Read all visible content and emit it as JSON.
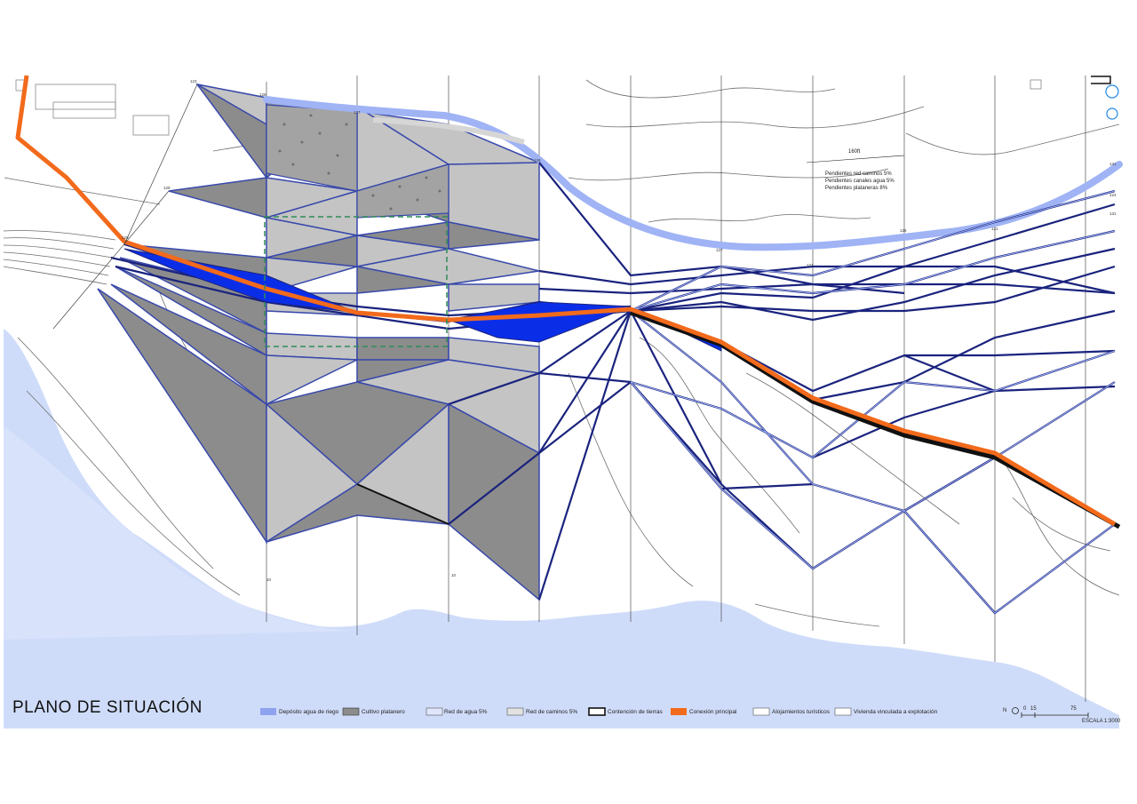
{
  "title": "PLANO DE SITUACIÓN",
  "legend": [
    {
      "label": "Depósito agua de riego",
      "color": "#8ea2f0",
      "icon": "water-deposit-swatch"
    },
    {
      "label": "Cultivo platanero",
      "color": "#8c8c8c",
      "icon": "banana-crop-swatch"
    },
    {
      "label": "Red de agua 5%",
      "color": "#b7c4f5",
      "icon": "water-network-swatch"
    },
    {
      "label": "Red de caminos 5%",
      "color": "#a8a8a8",
      "icon": "path-network-swatch"
    },
    {
      "label": "Contención de tierras",
      "color": "#111111",
      "icon": "earth-retaining-swatch"
    },
    {
      "label": "Conexión principal",
      "color": "#f26a1b",
      "icon": "main-connection-swatch"
    },
    {
      "label": "Alojamientos turísticos",
      "color": "#ffffff",
      "icon": "tourist-lodging-swatch"
    },
    {
      "label": "Vivienda vinculada a explotación",
      "color": "#ffffff",
      "icon": "linked-housing-swatch"
    }
  ],
  "slope_notes": {
    "scale_text": "160ft",
    "lines": [
      "Pendientes red caminos 5%",
      "Pendientes canales agua 5%",
      "Pendientes plataneras 8%"
    ]
  },
  "scale": {
    "zero": "0",
    "mid": "15",
    "end": "75",
    "label": "ESCALA 1:3000",
    "north_symbol": "N"
  },
  "node_labels": [
    "123",
    "126",
    "129",
    "137",
    "128",
    "127",
    "121",
    "126",
    "121",
    "124",
    "131",
    "10",
    "10",
    "129",
    "131"
  ],
  "colors": {
    "sea": "#cfdcf9",
    "land": "#ffffff",
    "crop_dark": "#8c8c8c",
    "crop_light": "#c4c4c4",
    "water_line": "#9fb3f5",
    "water_fill": "#0a2ee8",
    "main_road": "#f26a1b",
    "retaining": "#111111",
    "contour": "#6e6e6e",
    "sensitive_area": "#2e8b57"
  }
}
